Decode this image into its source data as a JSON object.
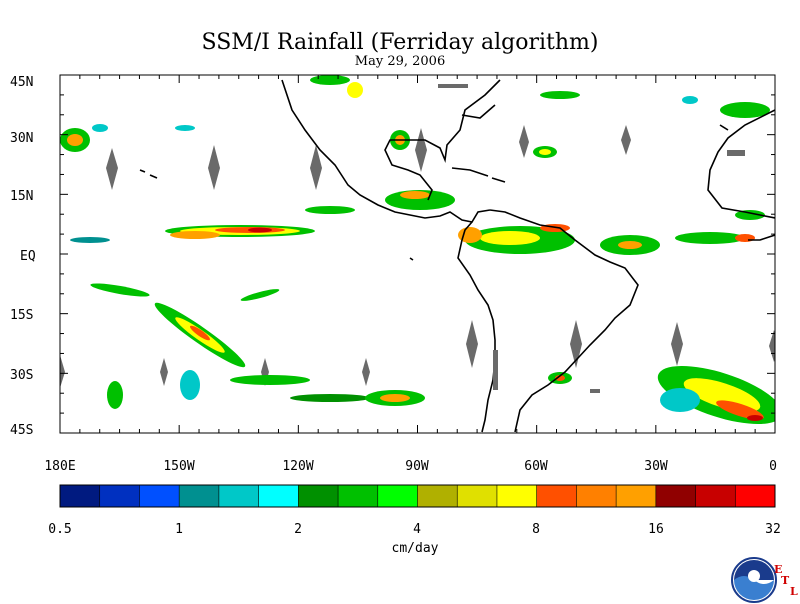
{
  "title": "SSM/I Rainfall (Ferriday algorithm)",
  "date": "May 29, 2006",
  "lat_labels": [
    "45N",
    "30N",
    "15N",
    "EQ",
    "15S",
    "30S",
    "45S"
  ],
  "lon_labels": [
    "180E",
    "150W",
    "120W",
    "90W",
    "60W",
    "30W",
    "0"
  ],
  "colorbar": {
    "units": "cm/day",
    "tick_labels": [
      "0.5",
      "1",
      "2",
      "4",
      "8",
      "16",
      "32"
    ],
    "colors": [
      "#001a80",
      "#0030c0",
      "#0050ff",
      "#009090",
      "#00c8c8",
      "#00ffff",
      "#009000",
      "#00c000",
      "#00ff00",
      "#b0b000",
      "#e0e000",
      "#ffff00",
      "#ff5000",
      "#ff8000",
      "#ffa000",
      "#900000",
      "#c80000",
      "#ff0000"
    ]
  },
  "logo": {
    "name": "NOAA",
    "etl_letters": [
      "E",
      "T",
      "L"
    ]
  }
}
